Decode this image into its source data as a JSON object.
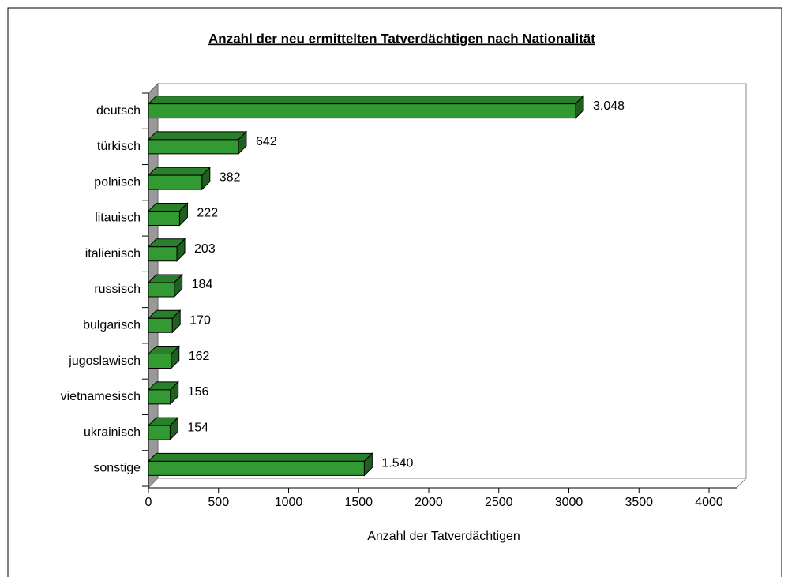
{
  "chart_data": {
    "type": "bar3d_horizontal",
    "title": "Anzahl der neu ermittelten Tatverdächtigen nach Nationalität",
    "categories": [
      "deutsch",
      "türkisch",
      "polnisch",
      "litauisch",
      "italienisch",
      "russisch",
      "bulgarisch",
      "jugoslawisch",
      "vietnamesisch",
      "ukrainisch",
      "sonstige"
    ],
    "values": [
      3048,
      642,
      382,
      222,
      203,
      184,
      170,
      162,
      156,
      154,
      1540
    ],
    "value_labels": [
      "3.048",
      "642",
      "382",
      "222",
      "203",
      "184",
      "170",
      "162",
      "156",
      "154",
      "1.540"
    ],
    "color": "#339933",
    "xlabel": "Anzahl der Tatverdächtigen",
    "xlim": [
      0,
      4000
    ],
    "xticks": [
      0,
      500,
      1000,
      1500,
      2000,
      2500,
      3000,
      3500,
      4000
    ],
    "grid": false
  }
}
